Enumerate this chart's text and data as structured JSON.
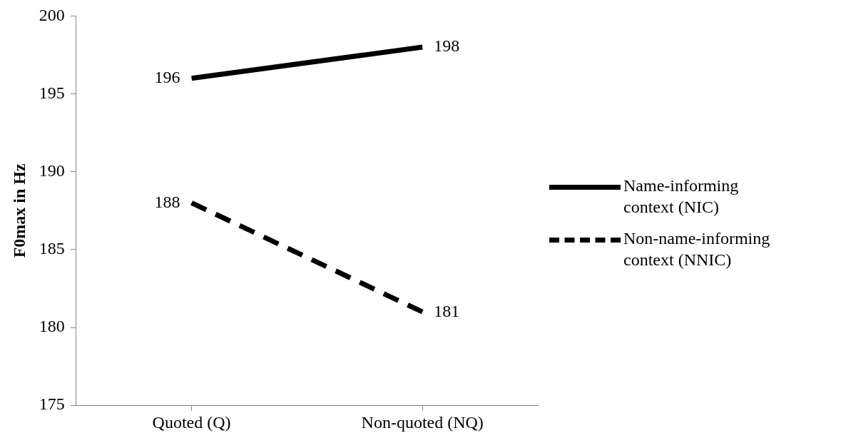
{
  "chart_data": {
    "type": "line",
    "ylabel": "F0max in Hz",
    "categories": [
      "Quoted (Q)",
      "Non-quoted (NQ)"
    ],
    "series": [
      {
        "name": "Name-informing context (NIC)",
        "color": "#000000",
        "line_style": "solid",
        "values": [
          196,
          198
        ]
      },
      {
        "name": "Non-name-informing context (NNIC)",
        "color": "#000000",
        "line_style": "dashed",
        "values": [
          188,
          181
        ]
      }
    ],
    "ylim": [
      175,
      200
    ],
    "yticks": [
      175,
      180,
      185,
      190,
      195,
      200
    ],
    "grid": false,
    "legend": "right",
    "marker": "none",
    "data_labels": true
  }
}
